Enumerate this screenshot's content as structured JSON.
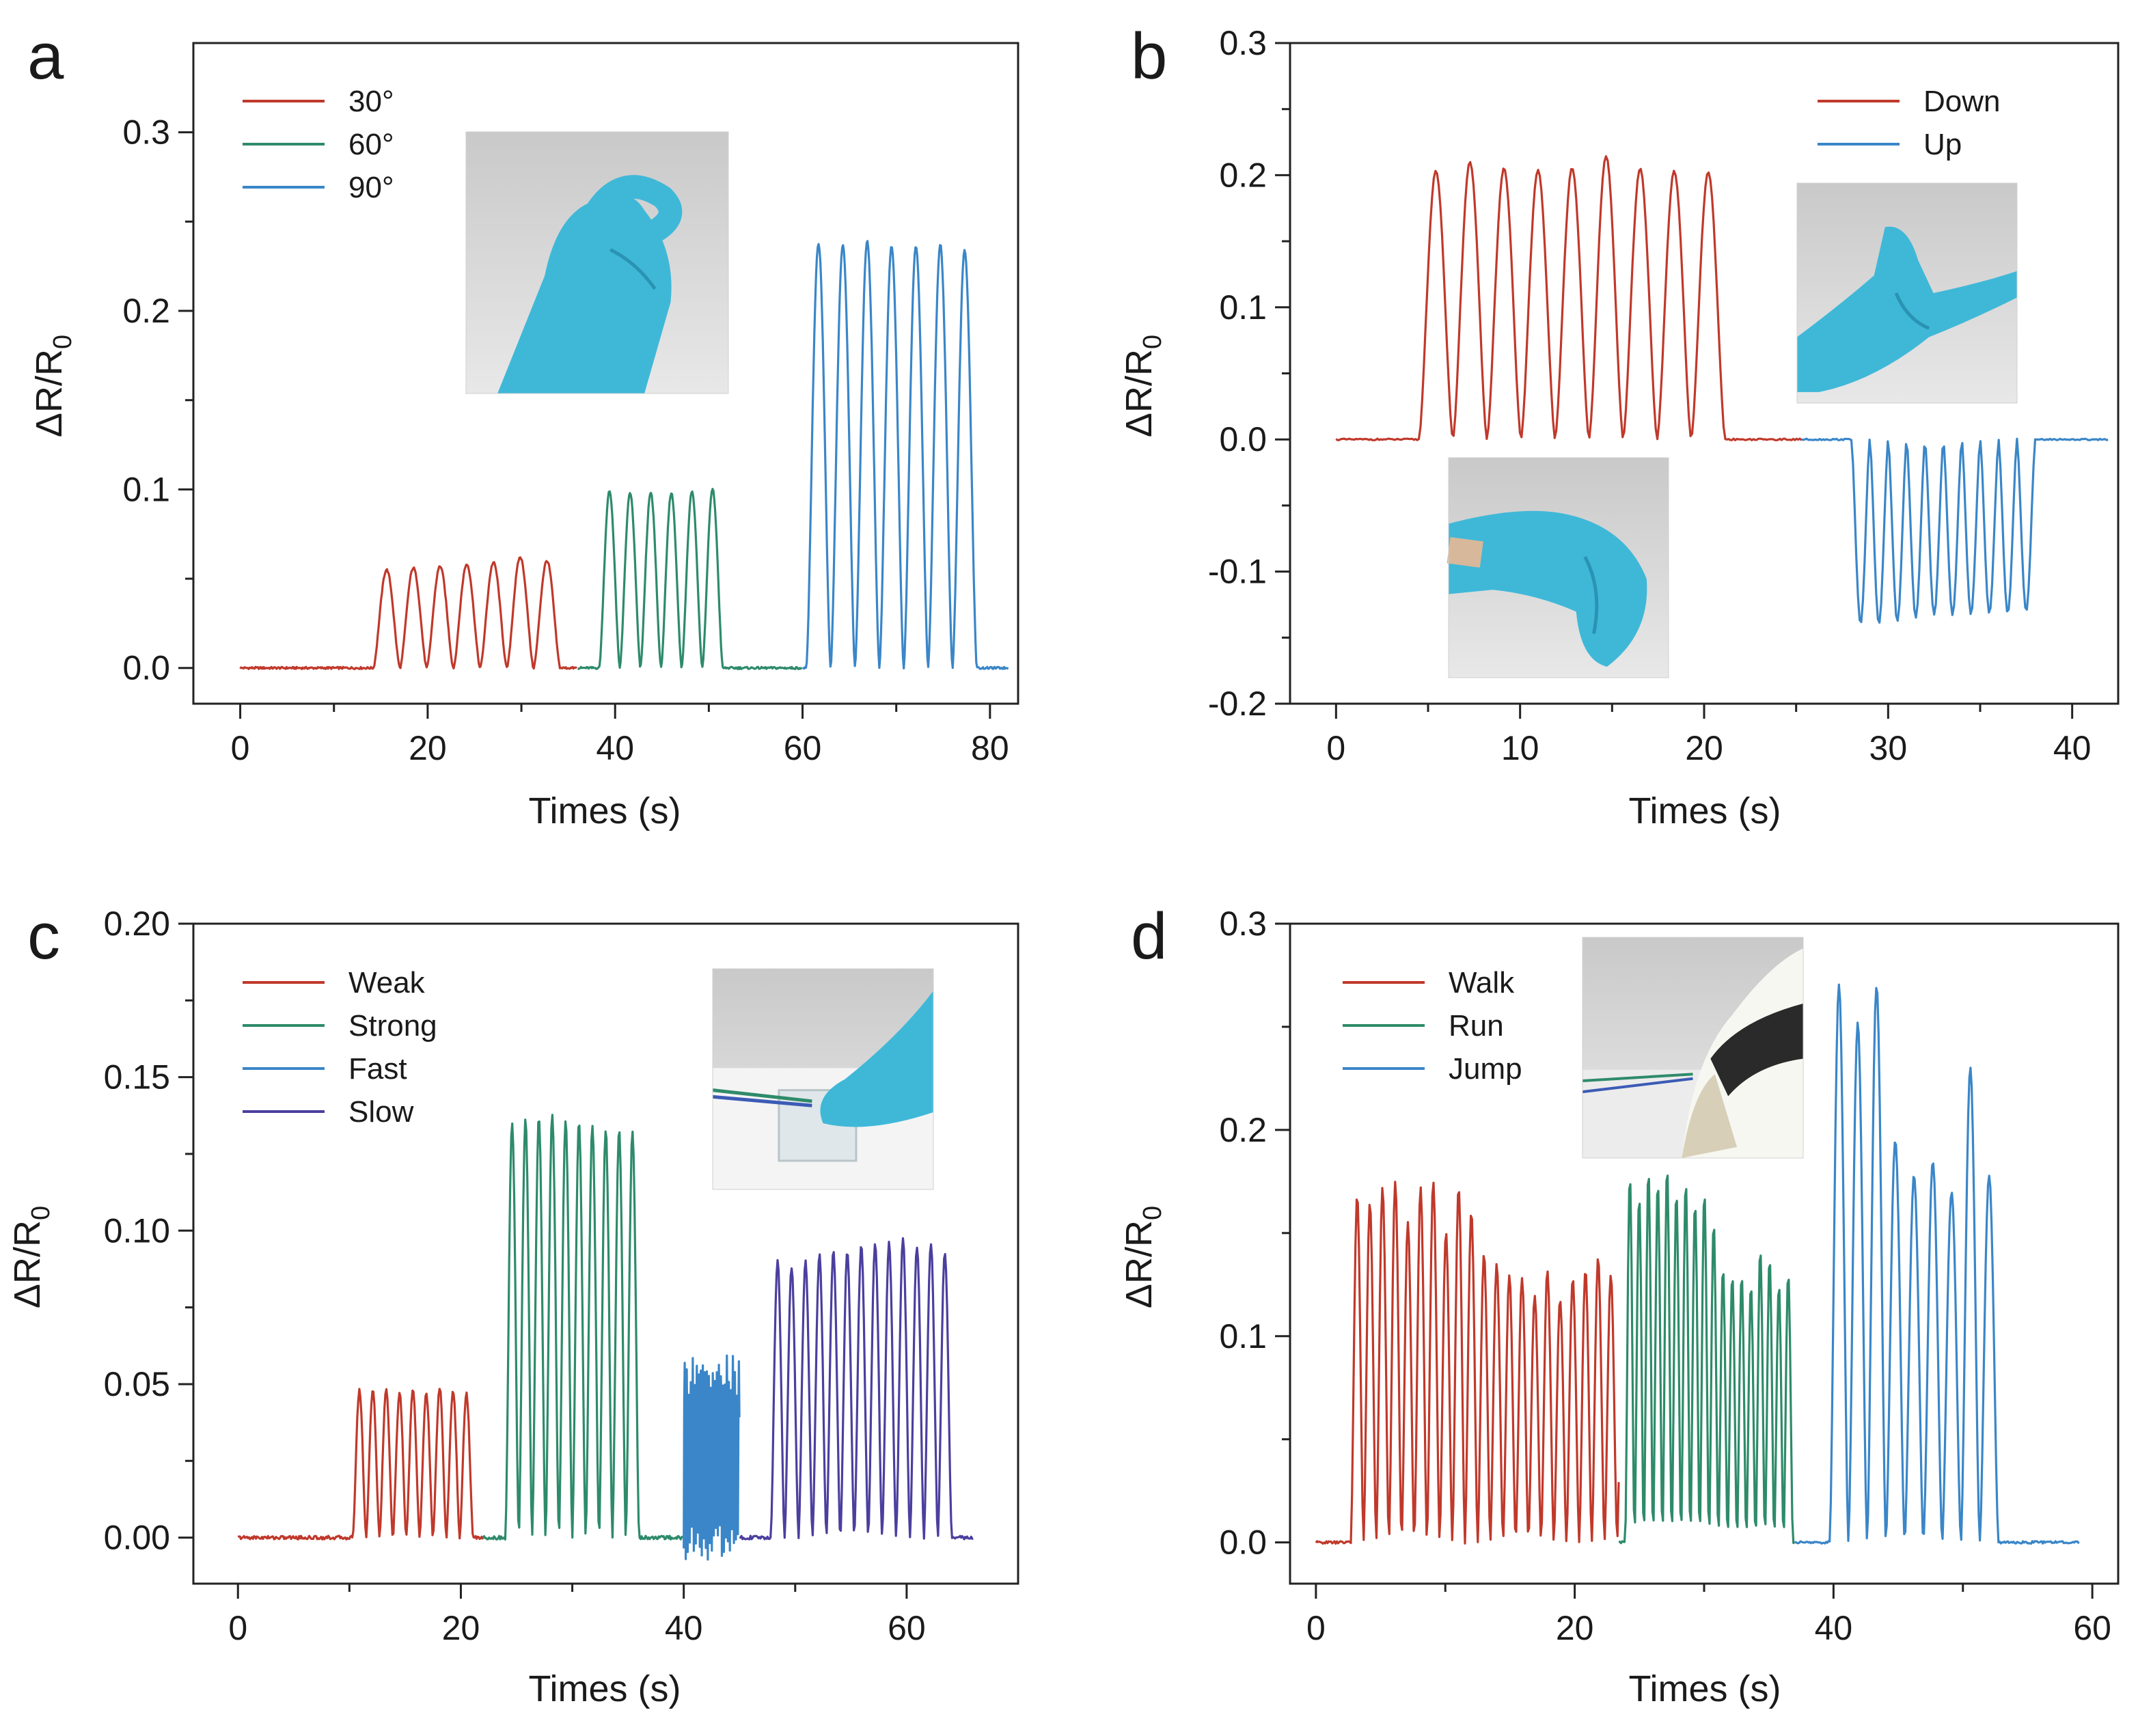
{
  "figure": {
    "title": "",
    "description_free": true
  },
  "chart_data": [
    {
      "panel": "a",
      "type": "line",
      "xlabel": "Times (s)",
      "ylabel": "ΔR/R",
      "ylabel_sub": "0",
      "xlim": [
        -5,
        83
      ],
      "ylim": [
        -0.02,
        0.35
      ],
      "xticks": [
        0,
        20,
        40,
        60,
        80
      ],
      "yticks": [
        0.0,
        0.1,
        0.2,
        0.3
      ],
      "ytick_labels": [
        "0.0",
        "0.1",
        "0.2",
        "0.3"
      ],
      "legend": {
        "position": "top-left"
      },
      "inset": {
        "name": "inset-bent-finger-photo",
        "depicts": "gloved hand with bent index finger"
      },
      "series": [
        {
          "name": "30°",
          "color": "#c0392b",
          "baseline_start": 0,
          "pulse_start": 14.2,
          "period": 2.85,
          "peaks": [
            0.055,
            0.056,
            0.057,
            0.058,
            0.059,
            0.062,
            0.06
          ],
          "end": 36
        },
        {
          "name": "60°",
          "color": "#2e8b6a",
          "baseline_start": 36,
          "pulse_start": 38.3,
          "period": 2.2,
          "peaks": [
            0.099,
            0.098,
            0.098,
            0.098,
            0.099,
            0.1
          ],
          "end": 60
        },
        {
          "name": "90°",
          "color": "#3a86c8",
          "baseline_start": 60,
          "pulse_start": 60.4,
          "period": 2.6,
          "peaks": [
            0.238,
            0.237,
            0.239,
            0.236,
            0.236,
            0.237,
            0.234
          ],
          "end": 82
        }
      ]
    },
    {
      "panel": "b",
      "type": "line",
      "xlabel": "Times (s)",
      "ylabel": "ΔR/R",
      "ylabel_sub": "0",
      "xlim": [
        -2.5,
        42.5
      ],
      "ylim": [
        -0.2,
        0.3
      ],
      "xticks": [
        0,
        10,
        20,
        30,
        40
      ],
      "yticks": [
        -0.2,
        -0.1,
        0.0,
        0.1,
        0.2,
        0.3
      ],
      "ytick_labels": [
        "-0.2",
        "-0.1",
        "0.0",
        "0.1",
        "0.2",
        "0.3"
      ],
      "legend": {
        "position": "top-right"
      },
      "insets": [
        {
          "name": "inset-finger-up-photo",
          "depicts": "gloved hand with finger bent upward"
        },
        {
          "name": "inset-finger-down-photo",
          "depicts": "gloved hand with fingers curled down"
        }
      ],
      "series": [
        {
          "name": "Down",
          "color": "#c0392b",
          "baseline_start": 0,
          "pulse_start": 4.5,
          "period": 1.85,
          "peaks": [
            0.203,
            0.21,
            0.205,
            0.204,
            0.205,
            0.214,
            0.205,
            0.203,
            0.202
          ],
          "end": 25.3
        },
        {
          "name": "Up",
          "color": "#3a86c8",
          "baseline_start": 25.3,
          "pulse_start": 28,
          "period": 1.0,
          "peaks": [
            -0.14,
            -0.14,
            -0.138,
            -0.135,
            -0.133,
            -0.133,
            -0.132,
            -0.132,
            -0.132,
            -0.13
          ],
          "end": 42
        }
      ]
    },
    {
      "panel": "c",
      "type": "line",
      "xlabel": "Times (s)",
      "ylabel": "ΔR/R",
      "ylabel_sub": "0",
      "xlim": [
        -4,
        70
      ],
      "ylim": [
        -0.015,
        0.2
      ],
      "xticks": [
        0,
        20,
        40,
        60
      ],
      "yticks": [
        0.0,
        0.05,
        0.1,
        0.15,
        0.2
      ],
      "ytick_labels": [
        "0.00",
        "0.05",
        "0.10",
        "0.15",
        "0.20"
      ],
      "legend": {
        "position": "top-left"
      },
      "inset": {
        "name": "inset-finger-press-sensor-photo",
        "depicts": "gloved finger pressing transparent sensor with wires"
      },
      "series": [
        {
          "name": "Weak",
          "color": "#c0392b",
          "baseline_start": 0,
          "pulse_start": 10.3,
          "period": 1.2,
          "peaks": [
            0.048,
            0.048,
            0.048,
            0.047,
            0.048,
            0.047,
            0.049,
            0.048,
            0.047
          ],
          "end": 22
        },
        {
          "name": "Strong",
          "color": "#2e8b6a",
          "baseline_start": 22,
          "pulse_start": 24,
          "period": 1.2,
          "peaks": [
            0.135,
            0.136,
            0.137,
            0.138,
            0.136,
            0.135,
            0.134,
            0.133,
            0.133,
            0.132
          ],
          "end": 40
        },
        {
          "name": "Fast",
          "color": "#3a86c8",
          "baseline_start": 40,
          "pulse_start": 40,
          "period": 0.18,
          "peaks": [
            0.06
          ],
          "end": 45
        },
        {
          "name": "Slow",
          "color": "#4b3f9e",
          "baseline_start": 45,
          "pulse_start": 47.8,
          "period": 1.25,
          "peaks": [
            0.09,
            0.088,
            0.09,
            0.092,
            0.093,
            0.093,
            0.095,
            0.096,
            0.096,
            0.097,
            0.095,
            0.096,
            0.093
          ],
          "end": 66
        }
      ]
    },
    {
      "panel": "d",
      "type": "line",
      "xlabel": "Times (s)",
      "ylabel": "ΔR/R",
      "ylabel_sub": "0",
      "xlim": [
        -2,
        62
      ],
      "ylim": [
        -0.02,
        0.3
      ],
      "xticks": [
        0,
        20,
        40,
        60
      ],
      "yticks": [
        0.0,
        0.1,
        0.2,
        0.3
      ],
      "ytick_labels": [
        "0.0",
        "0.1",
        "0.2",
        "0.3"
      ],
      "legend": {
        "position": "top-left"
      },
      "inset": {
        "name": "inset-shoe-sensor-photo",
        "depicts": "sneaker heel stepping on wired sensor"
      },
      "series": [
        {
          "name": "Walk",
          "color": "#c0392b",
          "baseline_start": 0,
          "pulse_start": 2.7,
          "period": 0.98,
          "peaks": [
            0.168,
            0.165,
            0.172,
            0.175,
            0.155,
            0.172,
            0.175,
            0.15,
            0.172,
            0.16,
            0.14,
            0.135,
            0.13,
            0.128,
            0.12,
            0.132,
            0.118,
            0.128,
            0.132,
            0.138,
            0.13,
            0.14
          ],
          "end": 23.4
        },
        {
          "name": "Run",
          "color": "#2e8b6a",
          "baseline_start": 23.4,
          "pulse_start": 23.9,
          "period": 0.72,
          "peaks": [
            0.178,
            0.168,
            0.18,
            0.175,
            0.182,
            0.17,
            0.175,
            0.165,
            0.17,
            0.155,
            0.133,
            0.13,
            0.13,
            0.125,
            0.142,
            0.138,
            0.125,
            0.13
          ],
          "end": 37
        },
        {
          "name": "Jump",
          "color": "#3a86c8",
          "baseline_start": 37,
          "pulse_start": 39.7,
          "period": 1.45,
          "peaks": [
            0.27,
            0.252,
            0.27,
            0.195,
            0.178,
            0.185,
            0.17,
            0.23,
            0.178
          ],
          "end": 59
        }
      ]
    }
  ]
}
